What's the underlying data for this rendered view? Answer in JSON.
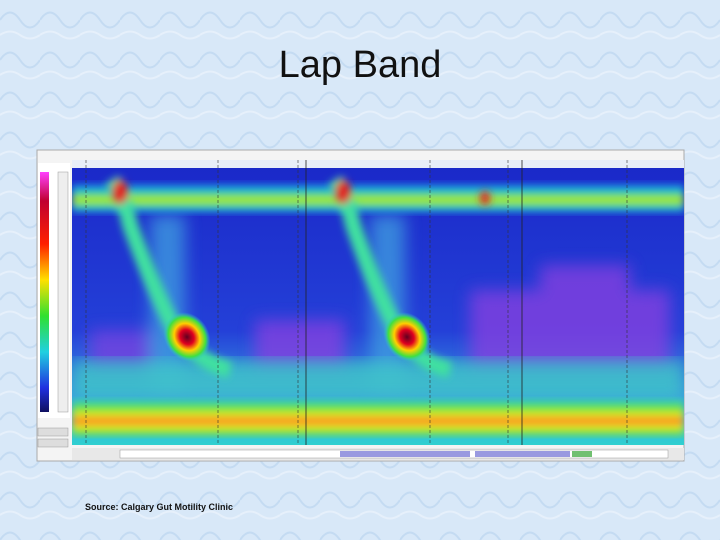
{
  "header": {
    "title": "Lap Band"
  },
  "footer": {
    "source": "Source: Calgary Gut Motility Clinic"
  }
}
